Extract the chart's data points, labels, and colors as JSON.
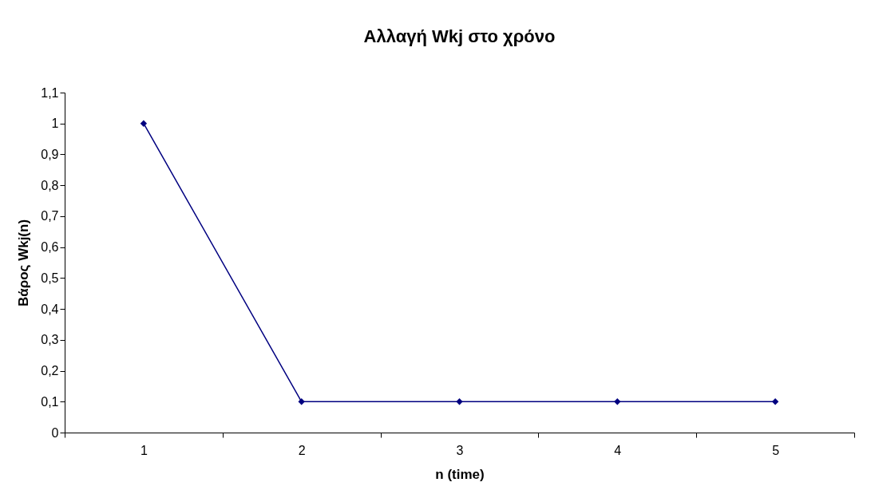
{
  "chart_data": {
    "type": "line",
    "title": "Αλλαγή Wkj στο χρόνο",
    "xlabel": "n (time)",
    "ylabel": "Βάρος Wkj(n)",
    "categories": [
      "1",
      "2",
      "3",
      "4",
      "5"
    ],
    "series": [
      {
        "color": "#000080",
        "values": [
          1,
          0.1,
          0.1,
          0.1,
          0.1
        ]
      }
    ],
    "ylim": [
      0,
      1.1
    ],
    "yticks": [
      0,
      {
        "value": 0.1,
        "label": "0,1"
      },
      {
        "value": 0.2,
        "label": "0,2"
      },
      {
        "value": 0.3,
        "label": "0,3"
      },
      {
        "value": 0.4,
        "label": "0,4"
      },
      {
        "value": 0.5,
        "label": "0,5"
      },
      {
        "value": 0.6,
        "label": "0,6"
      },
      {
        "value": 0.7,
        "label": "0,7"
      },
      {
        "value": 0.8,
        "label": "0,8"
      },
      {
        "value": 0.9,
        "label": "0,9"
      },
      1,
      {
        "value": 1.1,
        "label": "1,1"
      }
    ],
    "grid": false,
    "marker": "diamond",
    "line_style": "solid"
  }
}
